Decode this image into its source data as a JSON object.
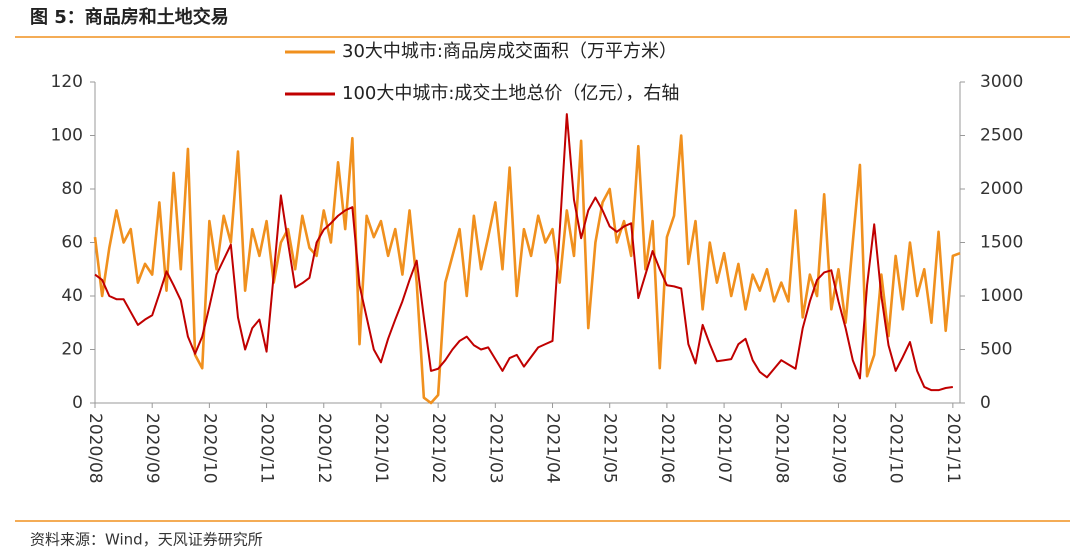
{
  "chart_data": {
    "type": "line",
    "title": "图 5：商品房和土地交易",
    "source": "资料来源：Wind，天风证券研究所",
    "categories": [
      "2020/08",
      null,
      null,
      null,
      null,
      null,
      null,
      null,
      "2020/09",
      null,
      null,
      null,
      null,
      null,
      null,
      null,
      "2020/10",
      null,
      null,
      null,
      null,
      null,
      null,
      null,
      "2020/11",
      null,
      null,
      null,
      null,
      null,
      null,
      null,
      "2020/12",
      null,
      null,
      null,
      null,
      null,
      null,
      null,
      "2021/01",
      null,
      null,
      null,
      null,
      null,
      null,
      null,
      "2021/02",
      null,
      null,
      null,
      null,
      null,
      null,
      null,
      "2021/03",
      null,
      null,
      null,
      null,
      null,
      null,
      null,
      "2021/04",
      null,
      null,
      null,
      null,
      null,
      null,
      null,
      "2021/05",
      null,
      null,
      null,
      null,
      null,
      null,
      null,
      "2021/06",
      null,
      null,
      null,
      null,
      null,
      null,
      null,
      "2021/07",
      null,
      null,
      null,
      null,
      null,
      null,
      null,
      "2021/08",
      null,
      null,
      null,
      null,
      null,
      null,
      null,
      "2021/09",
      null,
      null,
      null,
      null,
      null,
      null,
      null,
      "2021/10",
      null,
      null,
      null,
      null,
      null,
      null,
      null,
      "2021/11",
      null
    ],
    "series": [
      {
        "name": "30大中城市:商品房成交面积（万平方米）",
        "color": "#f0901e",
        "axis": "y",
        "values": [
          62,
          40,
          58,
          72,
          60,
          65,
          45,
          52,
          48,
          75,
          42,
          86,
          50,
          95,
          18,
          13,
          68,
          50,
          70,
          60,
          94,
          42,
          65,
          55,
          68,
          45,
          60,
          65,
          50,
          70,
          58,
          55,
          72,
          60,
          90,
          65,
          99,
          22,
          70,
          62,
          68,
          55,
          65,
          48,
          72,
          45,
          2,
          0,
          3,
          45,
          55,
          65,
          40,
          70,
          50,
          62,
          75,
          50,
          88,
          40,
          65,
          55,
          70,
          60,
          65,
          45,
          72,
          55,
          98,
          28,
          60,
          75,
          80,
          60,
          68,
          55,
          96,
          50,
          68,
          13,
          62,
          70,
          100,
          52,
          68,
          35,
          60,
          45,
          56,
          40,
          52,
          35,
          48,
          42,
          50,
          38,
          45,
          38,
          72,
          32,
          48,
          40,
          78,
          35,
          50,
          30,
          60,
          89,
          10,
          18,
          48,
          25,
          55,
          35,
          60,
          40,
          50,
          30,
          64,
          27,
          55,
          56
        ]
      },
      {
        "name": "100大中城市:成交土地总价（亿元），右轴",
        "color": "#c00000",
        "axis": "y2",
        "values": [
          1200,
          1150,
          1000,
          970,
          970,
          850,
          730,
          780,
          820,
          1020,
          1230,
          1100,
          960,
          620,
          460,
          620,
          900,
          1200,
          1340,
          1480,
          800,
          500,
          700,
          780,
          480,
          1200,
          1940,
          1500,
          1080,
          1120,
          1170,
          1500,
          1620,
          1680,
          1750,
          1800,
          1830,
          1100,
          800,
          500,
          380,
          600,
          780,
          950,
          1150,
          1330,
          800,
          300,
          320,
          400,
          500,
          580,
          620,
          540,
          500,
          520,
          410,
          300,
          420,
          450,
          340,
          430,
          520,
          550,
          580,
          1600,
          2700,
          1900,
          1540,
          1800,
          1920,
          1800,
          1650,
          1600,
          1650,
          1680,
          980,
          1200,
          1420,
          1250,
          1100,
          1090,
          1070,
          550,
          370,
          730,
          550,
          390,
          400,
          410,
          550,
          600,
          400,
          290,
          240,
          320,
          400,
          360,
          320,
          700,
          950,
          1150,
          1220,
          1240,
          950,
          700,
          400,
          230,
          1100,
          1670,
          1000,
          540,
          300,
          430,
          570,
          300,
          150,
          120,
          120,
          140,
          150,
          null
        ]
      }
    ],
    "ylim": [
      0,
      120
    ],
    "yticks": [
      0,
      20,
      40,
      60,
      80,
      100,
      120
    ],
    "y2lim": [
      0,
      3000
    ],
    "y2ticks": [
      0,
      500,
      1000,
      1500,
      2000,
      2500,
      3000
    ]
  }
}
